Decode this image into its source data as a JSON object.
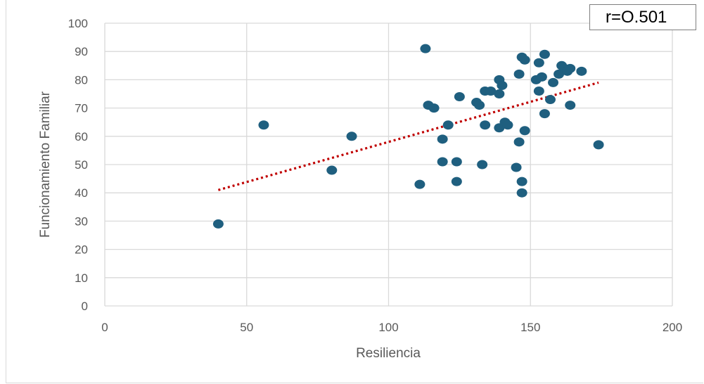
{
  "chart_data": {
    "type": "scatter",
    "title": "",
    "xlabel": "Resiliencia",
    "ylabel": "Funcionamiento Familiar",
    "xlim": [
      0,
      200
    ],
    "ylim": [
      0,
      100
    ],
    "x_ticks": [
      0,
      50,
      100,
      150,
      200
    ],
    "y_ticks": [
      0,
      10,
      20,
      30,
      40,
      50,
      60,
      70,
      80,
      90,
      100
    ],
    "grid": true,
    "annotation": "r=O.501",
    "trendline": {
      "style": "dotted",
      "color": "#c00000",
      "x": [
        40,
        174
      ],
      "y": [
        41,
        79
      ]
    },
    "series": [
      {
        "color": "#1f5f7f",
        "points": [
          [
            40,
            29
          ],
          [
            56,
            64
          ],
          [
            80,
            48
          ],
          [
            87,
            60
          ],
          [
            111,
            43
          ],
          [
            113,
            91
          ],
          [
            114,
            71
          ],
          [
            116,
            70
          ],
          [
            119,
            59
          ],
          [
            119,
            51
          ],
          [
            121,
            64
          ],
          [
            124,
            51
          ],
          [
            124,
            44
          ],
          [
            125,
            74
          ],
          [
            131,
            72
          ],
          [
            132,
            71
          ],
          [
            133,
            50
          ],
          [
            134,
            76
          ],
          [
            134,
            64
          ],
          [
            136,
            76
          ],
          [
            139,
            80
          ],
          [
            139,
            75
          ],
          [
            139,
            63
          ],
          [
            140,
            78
          ],
          [
            141,
            65
          ],
          [
            142,
            64
          ],
          [
            145,
            49
          ],
          [
            146,
            58
          ],
          [
            146,
            82
          ],
          [
            147,
            88
          ],
          [
            147,
            44
          ],
          [
            147,
            40
          ],
          [
            148,
            87
          ],
          [
            148,
            62
          ],
          [
            152,
            80
          ],
          [
            153,
            76
          ],
          [
            153,
            86
          ],
          [
            154,
            81
          ],
          [
            155,
            89
          ],
          [
            155,
            68
          ],
          [
            157,
            73
          ],
          [
            158,
            79
          ],
          [
            160,
            82
          ],
          [
            161,
            85
          ],
          [
            162,
            84
          ],
          [
            163,
            83
          ],
          [
            164,
            84
          ],
          [
            164,
            71
          ],
          [
            168,
            83
          ],
          [
            174,
            57
          ]
        ]
      }
    ]
  }
}
